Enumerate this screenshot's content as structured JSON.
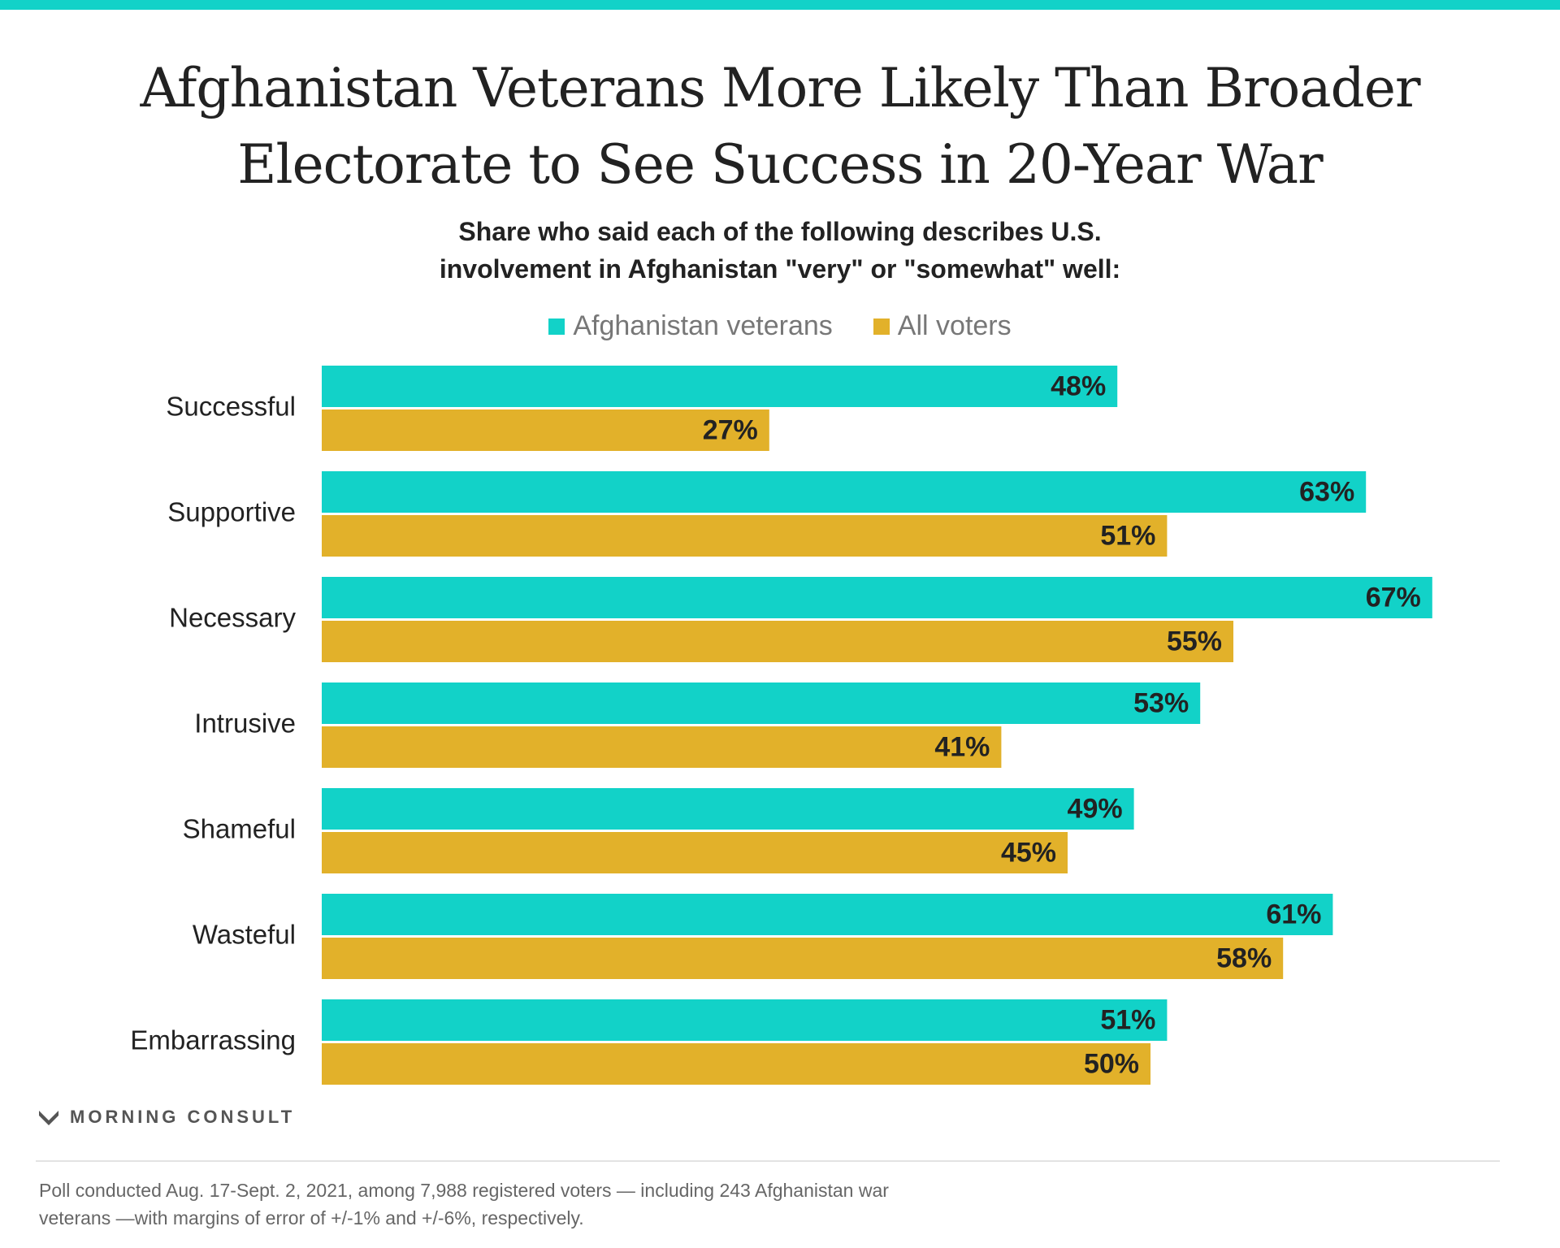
{
  "header": {
    "title_line1": "Afghanistan Veterans More Likely Than Broader",
    "title_line2": "Electorate to See Success in 20-Year War",
    "subtitle_line1": "Share who said each of the following describes U.S.",
    "subtitle_line2": "involvement in Afghanistan \"very\" or \"somewhat\" well:"
  },
  "legend": {
    "veterans_label": "Afghanistan veterans",
    "voters_label": "All voters"
  },
  "colors": {
    "accent": "#12d2c8",
    "veterans": "#12d2c8",
    "voters": "#e2b12a"
  },
  "chart_data": {
    "type": "bar",
    "orientation": "horizontal",
    "categories": [
      "Successful",
      "Supportive",
      "Necessary",
      "Intrusive",
      "Shameful",
      "Wasteful",
      "Embarrassing"
    ],
    "series": [
      {
        "name": "Afghanistan veterans",
        "values": [
          48,
          63,
          67,
          53,
          49,
          61,
          51
        ]
      },
      {
        "name": "All voters",
        "values": [
          27,
          51,
          55,
          41,
          45,
          58,
          50
        ]
      }
    ],
    "value_suffix": "%",
    "xlim": [
      0,
      100
    ],
    "grid": false,
    "legend_position": "top"
  },
  "brand": {
    "logo_text": "MORNING CONSULT"
  },
  "footnote": {
    "line1": "Poll conducted Aug. 17-Sept. 2, 2021, among 7,988 registered voters — including 243 Afghanistan war",
    "line2": "veterans —with margins of error of +/-1% and +/-6%, respectively."
  }
}
